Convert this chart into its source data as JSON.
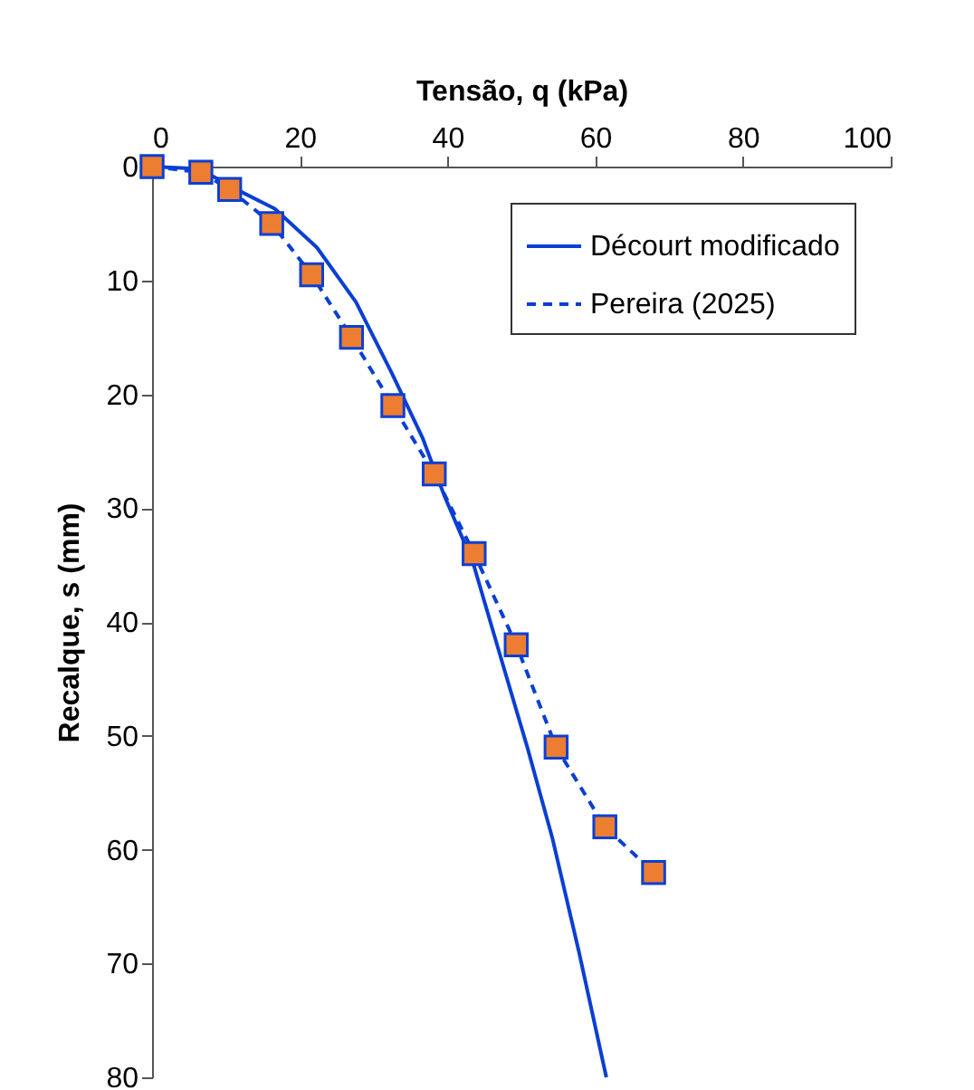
{
  "chart_data": {
    "type": "line",
    "xlabel": "Tensão, q (kPa)",
    "ylabel": "Recalque, s (mm)",
    "xlim": [
      0,
      100
    ],
    "xticks": [
      0,
      20,
      40,
      60,
      80,
      100
    ],
    "ylim": [
      80,
      0
    ],
    "yticks": [
      0,
      10,
      20,
      30,
      40,
      50,
      60,
      70,
      80
    ],
    "grid": false,
    "legend": "top right",
    "series": [
      {
        "name": "Décourt modificado",
        "color": "#0a3fd4",
        "line_style": "solid",
        "marker": "none",
        "x": [
          0,
          6.4,
          11.7,
          16.6,
          22.3,
          27.6,
          32.5,
          36.6,
          39.5,
          43.5,
          47.2,
          50.8,
          54.2,
          57.8,
          61.5
        ],
        "values": [
          0,
          0.2,
          2.1,
          3.7,
          7.1,
          11.9,
          18.2,
          23.8,
          28.8,
          34.9,
          43.1,
          51,
          59,
          69,
          80
        ]
      },
      {
        "name": "Pereira (2025)",
        "color": "#0a3fd4",
        "line_style": "dashed",
        "marker": "square",
        "x": [
          0,
          6.6,
          10.5,
          16.2,
          21.6,
          27,
          32.6,
          38.2,
          43.6,
          49.3,
          54.7,
          61.3,
          67.9
        ],
        "values": [
          0,
          0.5,
          2,
          5,
          9.5,
          15,
          21,
          27,
          34,
          42,
          51,
          58,
          62
        ]
      }
    ]
  }
}
